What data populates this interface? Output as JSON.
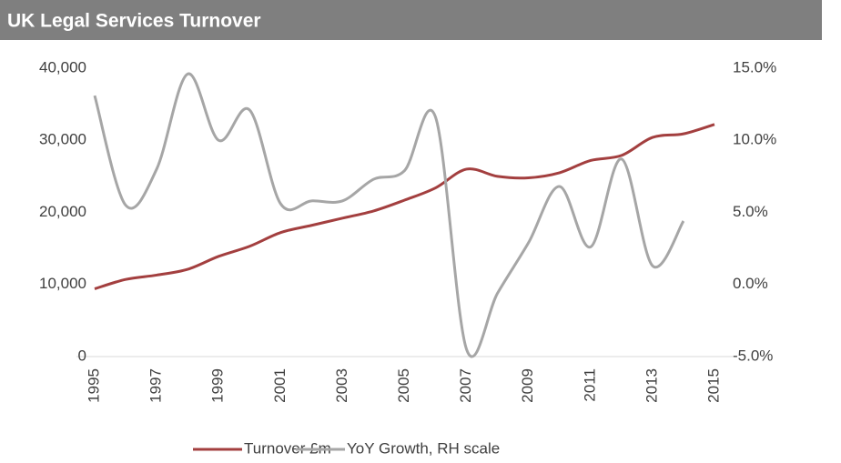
{
  "chart_data": {
    "type": "line",
    "title": "UK Legal Services Turnover",
    "categories": [
      "1995",
      null,
      "1997",
      null,
      "1999",
      null,
      "2001",
      null,
      "2003",
      null,
      "2005",
      null,
      "2007",
      null,
      "2009",
      null,
      "2011",
      null,
      "2013",
      null,
      "2015"
    ],
    "series": [
      {
        "name": "Turnover £m",
        "color": "#a33f3f",
        "axis": "y",
        "values": [
          9400,
          10700,
          11300,
          12100,
          13900,
          15300,
          17200,
          18200,
          19200,
          20200,
          21700,
          23400,
          26000,
          25000,
          24800,
          25500,
          27200,
          27900,
          30400,
          30900,
          32200
        ]
      },
      {
        "name": "YoY Growth, RH scale",
        "color": "#a6a6a6",
        "axis": "y2",
        "values": [
          13.1,
          5.5,
          8.0,
          14.6,
          10.0,
          12.1,
          5.6,
          5.8,
          5.8,
          7.3,
          7.9,
          11.6,
          -4.5,
          -0.6,
          2.9,
          6.8,
          2.6,
          8.7,
          1.3,
          4.4,
          null
        ]
      }
    ],
    "ylim": [
      0,
      40000
    ],
    "yticks": [
      0,
      {
        "value": 10000,
        "label": "10,000"
      },
      {
        "value": 20000,
        "label": "20,000"
      },
      {
        "value": 30000,
        "label": "30,000"
      },
      {
        "value": 40000,
        "label": "40,000"
      }
    ],
    "y2lim": [
      -5,
      15
    ],
    "y2ticks": [
      {
        "value": -5,
        "label": "-5.0%"
      },
      {
        "value": 0,
        "label": "0.0%"
      },
      {
        "value": 5,
        "label": "5.0%"
      },
      {
        "value": 10,
        "label": "10.0%"
      },
      {
        "value": 15,
        "label": "15.0%"
      }
    ],
    "smooth": true,
    "legend": "bottom"
  }
}
